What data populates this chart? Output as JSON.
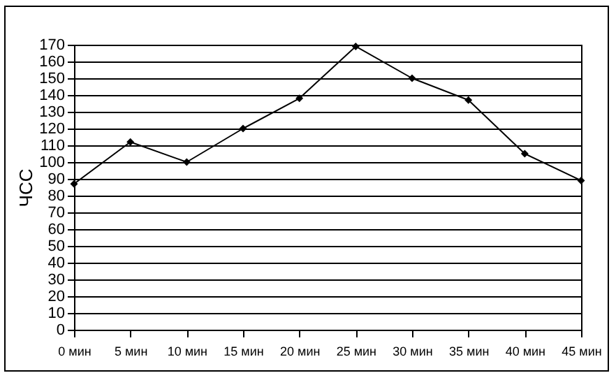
{
  "chart_data": {
    "type": "line",
    "ylabel": "ЧСС",
    "categories": [
      "0 мин",
      "5 мин",
      "10 мин",
      "15 мин",
      "20 мин",
      "25 мин",
      "30 мин",
      "35 мин",
      "40 мин",
      "45 мин"
    ],
    "series": [
      {
        "color": "#000000",
        "values": [
          87,
          112,
          100,
          120,
          138,
          169,
          150,
          137,
          105,
          89
        ]
      }
    ],
    "ylim": [
      0,
      170
    ],
    "yticks": [
      0,
      10,
      20,
      30,
      40,
      50,
      60,
      70,
      80,
      90,
      100,
      110,
      120,
      130,
      140,
      150,
      160,
      170
    ],
    "grid": "y",
    "marker": "diamond",
    "line_style": "solid",
    "legend": false
  }
}
